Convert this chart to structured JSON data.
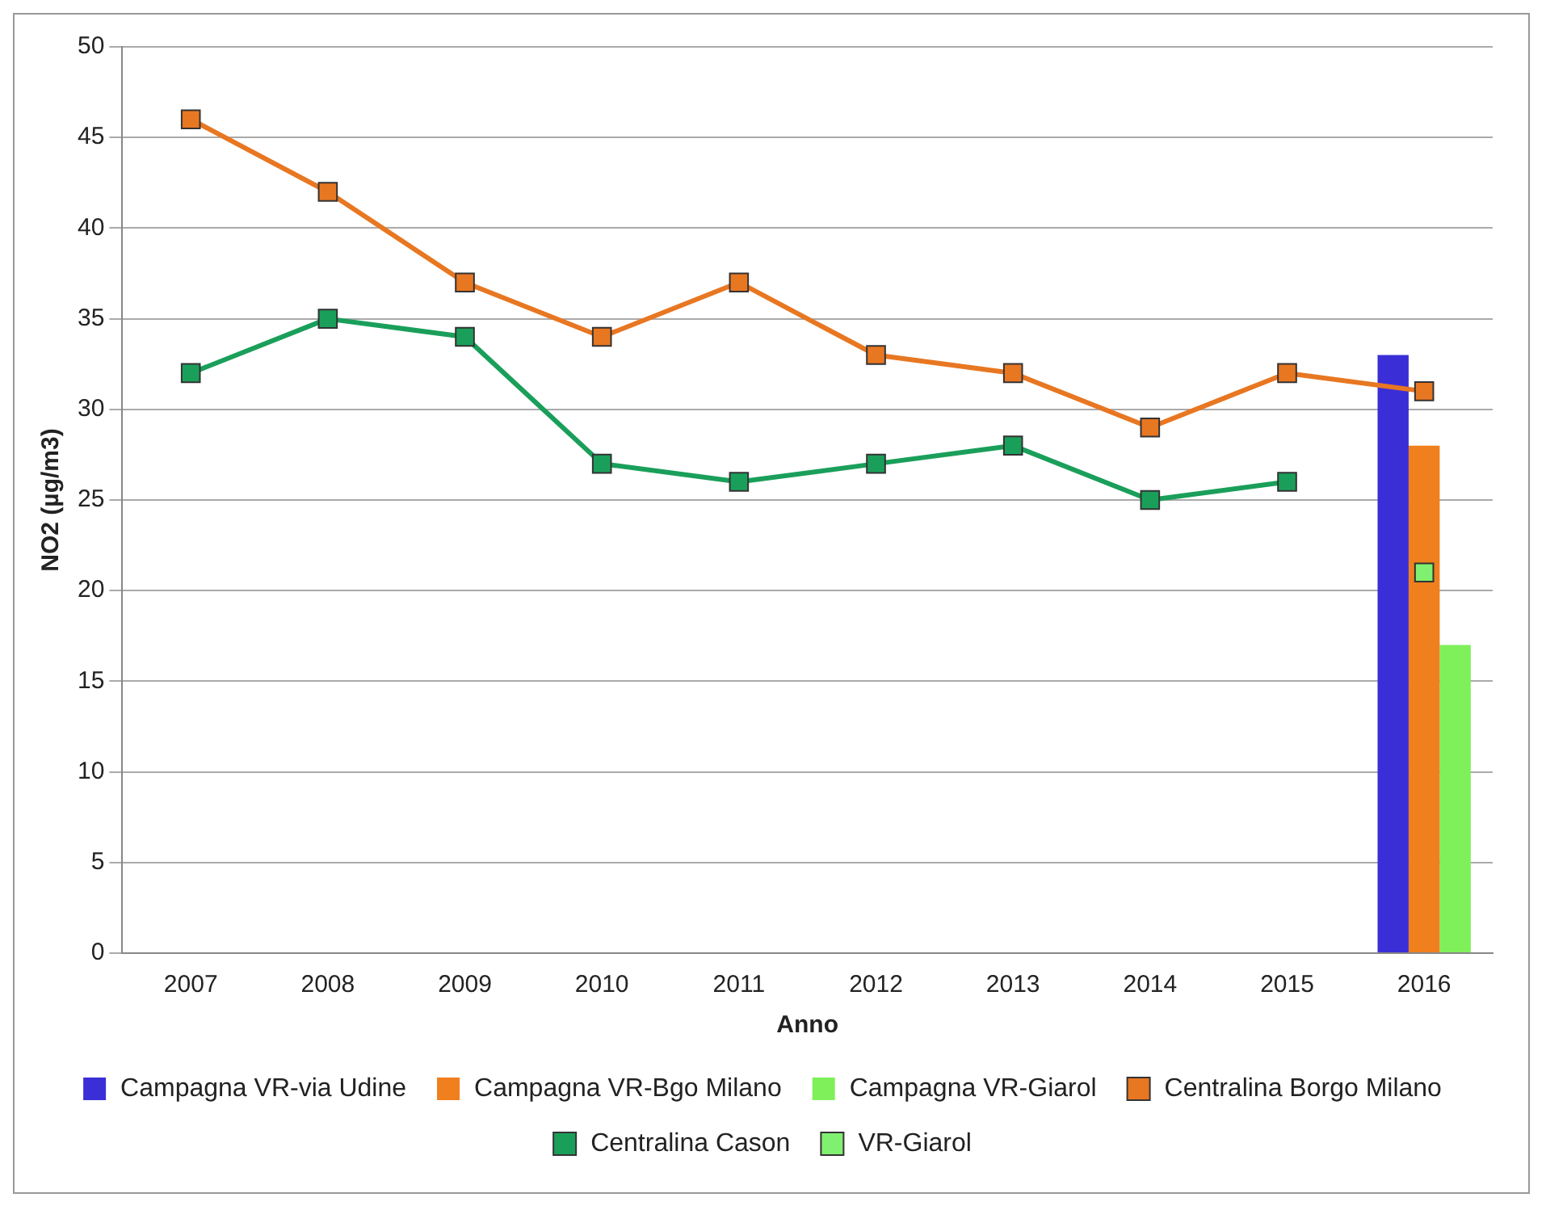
{
  "chart_data": {
    "type": "line",
    "xlabel": "Anno",
    "ylabel": "NO2 (µg/m3)",
    "categories": [
      "2007",
      "2008",
      "2009",
      "2010",
      "2011",
      "2012",
      "2013",
      "2014",
      "2015",
      "2016"
    ],
    "series": [
      {
        "name": "Campagna VR-via Udine",
        "type": "bar",
        "color": "#3a2fd6",
        "values": [
          null,
          null,
          null,
          null,
          null,
          null,
          null,
          null,
          null,
          33
        ]
      },
      {
        "name": "Campagna VR-Bgo Milano",
        "type": "bar",
        "color": "#f07f1e",
        "values": [
          null,
          null,
          null,
          null,
          null,
          null,
          null,
          null,
          null,
          28
        ]
      },
      {
        "name": "Campagna VR-Giarol",
        "type": "bar",
        "color": "#7ff05a",
        "values": [
          null,
          null,
          null,
          null,
          null,
          null,
          null,
          null,
          null,
          17
        ]
      },
      {
        "name": "Centralina Borgo Milano",
        "color": "#e87722",
        "values": [
          46,
          42,
          37,
          34,
          37,
          33,
          32,
          29,
          32,
          31
        ]
      },
      {
        "name": "Centralina Cason",
        "color": "#1a9f5a",
        "values": [
          32,
          35,
          34,
          27,
          26,
          27,
          28,
          25,
          26,
          null
        ]
      },
      {
        "name": "VR-Giarol",
        "color": "#80f070",
        "values": [
          null,
          null,
          null,
          null,
          null,
          null,
          null,
          null,
          null,
          21
        ]
      }
    ],
    "ylim": [
      0,
      50
    ],
    "yticks": [
      0,
      5,
      10,
      15,
      20,
      25,
      30,
      35,
      40,
      45,
      50
    ],
    "grid": "y",
    "legend": "bottom",
    "marker": "square",
    "line_style": "solid"
  }
}
